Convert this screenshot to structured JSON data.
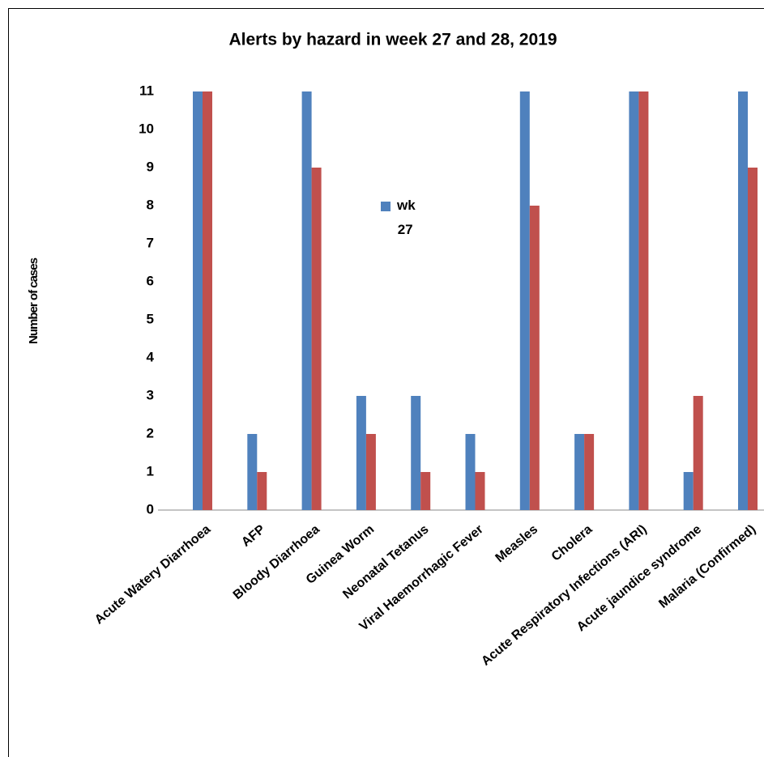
{
  "chart_data": {
    "type": "bar",
    "title": "Alerts by hazard  in week 27 and 28, 2019",
    "y_label": "Number of cases",
    "categories": [
      "Acute Watery Diarrhoea",
      "AFP",
      "Bloody Diarrhoea",
      "Guinea Worm",
      "Neonatal Tetanus",
      "Viral Haemorrhagic Fever",
      "Measles",
      "Cholera",
      "Acute Respiratory Infections (ARI)",
      "Acute jaundice syndrome",
      "Malaria (Confirmed)"
    ],
    "series": [
      {
        "name": "wk 27",
        "color": "#4f81bd",
        "values": [
          11,
          2,
          11,
          3,
          3,
          2,
          11,
          2,
          11,
          1,
          11
        ]
      },
      {
        "color": "#c0504d",
        "values": [
          11,
          1,
          9,
          2,
          1,
          1,
          8,
          2,
          11,
          3,
          9
        ]
      }
    ],
    "ylim": [
      0,
      11
    ],
    "yticks": [
      0,
      1,
      2,
      3,
      4,
      5,
      6,
      7,
      8,
      9,
      10,
      11
    ],
    "legend": "center"
  }
}
